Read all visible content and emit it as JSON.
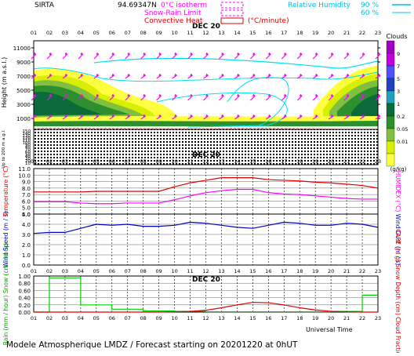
{
  "header": {
    "station": "SIRTA",
    "coords": "94.69347N",
    "legend_left": [
      {
        "label": "0°C isotherm",
        "color": "#ff00ff"
      },
      {
        "label": "Snow-Rain Limit",
        "color": "#ff00ff"
      },
      {
        "label": "Convective Heat",
        "color": "#e00000",
        "unit": "(°C/minute)"
      }
    ],
    "legend_right": {
      "label": "Relative Humidity",
      "levels": [
        "90 %",
        "60 %"
      ],
      "color": "#00c0e0"
    }
  },
  "hours": [
    "01",
    "02",
    "03",
    "04",
    "05",
    "06",
    "07",
    "08",
    "09",
    "10",
    "11",
    "12",
    "13",
    "14",
    "15",
    "16",
    "17",
    "18",
    "19",
    "20",
    "21",
    "22",
    "23"
  ],
  "date_label": "DEC 20",
  "clouds_scale": {
    "title": "Clouds",
    "unit": "(g/kg)",
    "labels": [
      "9",
      "7",
      "5",
      "3",
      "1",
      "0.2",
      "0.05",
      "0.01"
    ],
    "colors": [
      "#a000c0",
      "#c000e0",
      "#5050ff",
      "#2040c0",
      "#20a0c0",
      "#0a6a3a",
      "#2e8f2e",
      "#80c040",
      "#d8f000",
      "#ffff40"
    ]
  },
  "footer": {
    "universal_time": "Universal Time",
    "title": "Modele Atmospherique LMDZ / Forecast starting on 20201220 at 0hUT"
  },
  "chart_data": [
    {
      "type": "heatmap",
      "name": "clouds",
      "ylabel": "Height (m a.s.l.)",
      "ylabel_low": "Up to 200 m a.g.l.",
      "yticks_upper": [
        1000,
        3000,
        5000,
        7000,
        9000,
        11000
      ],
      "yticks_lower": [
        150,
        140,
        130,
        120,
        110,
        100,
        90,
        80,
        70,
        60,
        50,
        40,
        30,
        20,
        10
      ],
      "ylim": [
        0,
        12000
      ]
    },
    {
      "type": "line",
      "name": "temperature",
      "ylabel_left": "Temperature (°C)",
      "ylabel_right": "HUMIDEX (°C)",
      "yticks": [
        4,
        5,
        6,
        7,
        8,
        9,
        10,
        11
      ],
      "ylim": [
        4,
        11
      ],
      "series": [
        {
          "name": "Temperature",
          "color": "#e00000",
          "x": [
            1,
            2,
            3,
            4,
            5,
            6,
            7,
            8,
            9,
            10,
            11,
            12,
            13,
            14,
            15,
            16,
            17,
            18,
            19,
            20,
            21,
            22,
            23
          ],
          "values": [
            7.4,
            7.4,
            7.4,
            7.4,
            7.5,
            7.5,
            7.5,
            7.5,
            7.5,
            8.2,
            8.8,
            9.2,
            9.6,
            9.6,
            9.6,
            9.3,
            9.2,
            9.1,
            8.9,
            8.8,
            8.6,
            8.4,
            8.0
          ]
        },
        {
          "name": "HUMIDEX",
          "color": "#ff00ff",
          "x": [
            1,
            2,
            3,
            4,
            5,
            6,
            7,
            8,
            9,
            10,
            11,
            12,
            13,
            14,
            15,
            16,
            17,
            18,
            19,
            20,
            21,
            22,
            23
          ],
          "values": [
            5.9,
            5.9,
            5.9,
            5.7,
            5.6,
            5.6,
            5.7,
            5.7,
            5.7,
            6.2,
            6.8,
            7.3,
            7.6,
            7.8,
            7.8,
            7.3,
            7.1,
            7.0,
            6.8,
            6.6,
            6.4,
            6.3,
            6.3
          ]
        }
      ]
    },
    {
      "type": "line",
      "name": "wind",
      "ylabel_left": "Wind Speed (m / s)",
      "ylabel_right": "Wind Gust (m / s)",
      "yticks": [
        0.0,
        1.0,
        2.0,
        3.0,
        4.0,
        5.0
      ],
      "ylim": [
        0,
        5
      ],
      "series": [
        {
          "name": "Wind Speed",
          "color": "#0000c0",
          "x": [
            1,
            2,
            3,
            4,
            5,
            6,
            7,
            8,
            9,
            10,
            11,
            12,
            13,
            14,
            15,
            16,
            17,
            18,
            19,
            20,
            21,
            22,
            23
          ],
          "values": [
            3.1,
            3.2,
            3.2,
            3.6,
            4.0,
            3.9,
            4.0,
            3.8,
            3.8,
            3.9,
            4.2,
            4.1,
            3.9,
            3.7,
            3.6,
            3.9,
            4.2,
            4.1,
            3.9,
            3.9,
            4.1,
            4.0,
            3.7
          ]
        }
      ]
    },
    {
      "type": "line",
      "name": "precipitation",
      "ylabel_left": "Rain (mm / hour) Snow (cm / hour)",
      "ylabel_right": "CAPE (J / g) Snow Depth (cm) Cloud Fraction",
      "yticks": [
        "0.00",
        "0.20",
        "0.40",
        "0.60",
        "0.80",
        "1.00"
      ],
      "ylim": [
        0,
        1
      ],
      "series": [
        {
          "name": "Cloud Fraction",
          "color": "#00d000",
          "step": true,
          "x": [
            1,
            2,
            3,
            4,
            5,
            6,
            7,
            8,
            9,
            10,
            11,
            12,
            13,
            14,
            15,
            16,
            17,
            18,
            19,
            20,
            21,
            22,
            23
          ],
          "values": [
            0.0,
            0.95,
            0.95,
            0.2,
            0.2,
            0.08,
            0.08,
            0.03,
            0.03,
            0.02,
            0.02,
            0.01,
            0.01,
            0.01,
            0.01,
            0.01,
            0.01,
            0.01,
            0.01,
            0.02,
            0.02,
            0.47,
            0.47
          ]
        },
        {
          "name": "CAPE",
          "color": "#e00000",
          "x": [
            1,
            2,
            3,
            4,
            5,
            6,
            7,
            8,
            9,
            10,
            11,
            12,
            13,
            14,
            15,
            16,
            17,
            18,
            19,
            20,
            21,
            22,
            23
          ],
          "values": [
            0,
            0,
            0,
            0,
            0,
            0,
            0,
            0,
            0,
            0.01,
            0.02,
            0.05,
            0.12,
            0.2,
            0.27,
            0.26,
            0.2,
            0.12,
            0.06,
            0.02,
            0.01,
            0,
            0
          ]
        }
      ]
    }
  ]
}
